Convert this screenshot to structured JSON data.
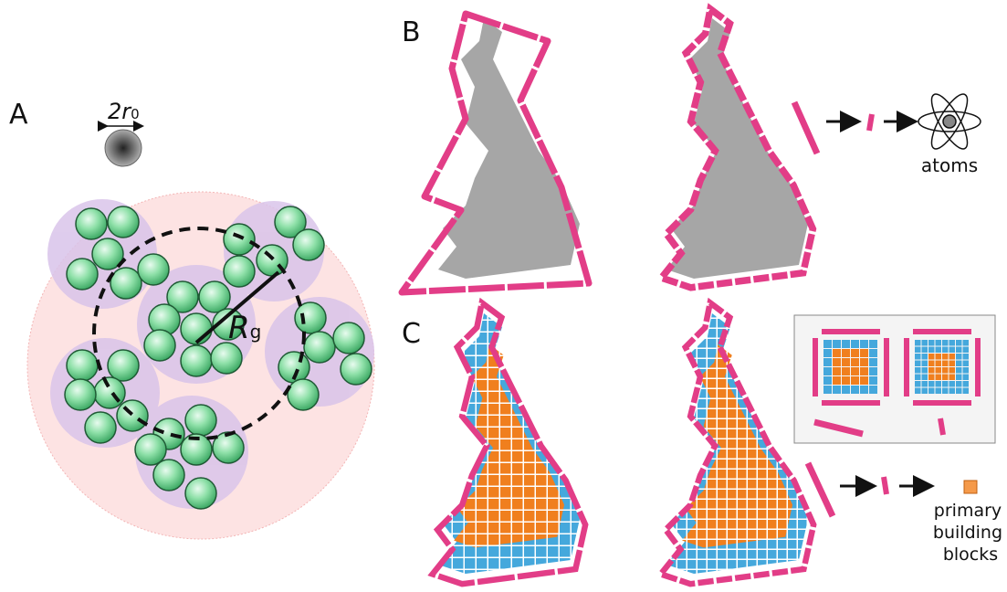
{
  "panel_a": {
    "label": "A",
    "diameter_label": "2r",
    "diameter_subscript": "0",
    "radius_label": "R",
    "radius_subscript": "g"
  },
  "panel_b": {
    "label": "B",
    "end_label": "atoms"
  },
  "panel_c": {
    "label": "C",
    "end_label_lines": [
      "primary",
      "building",
      "blocks"
    ]
  }
}
